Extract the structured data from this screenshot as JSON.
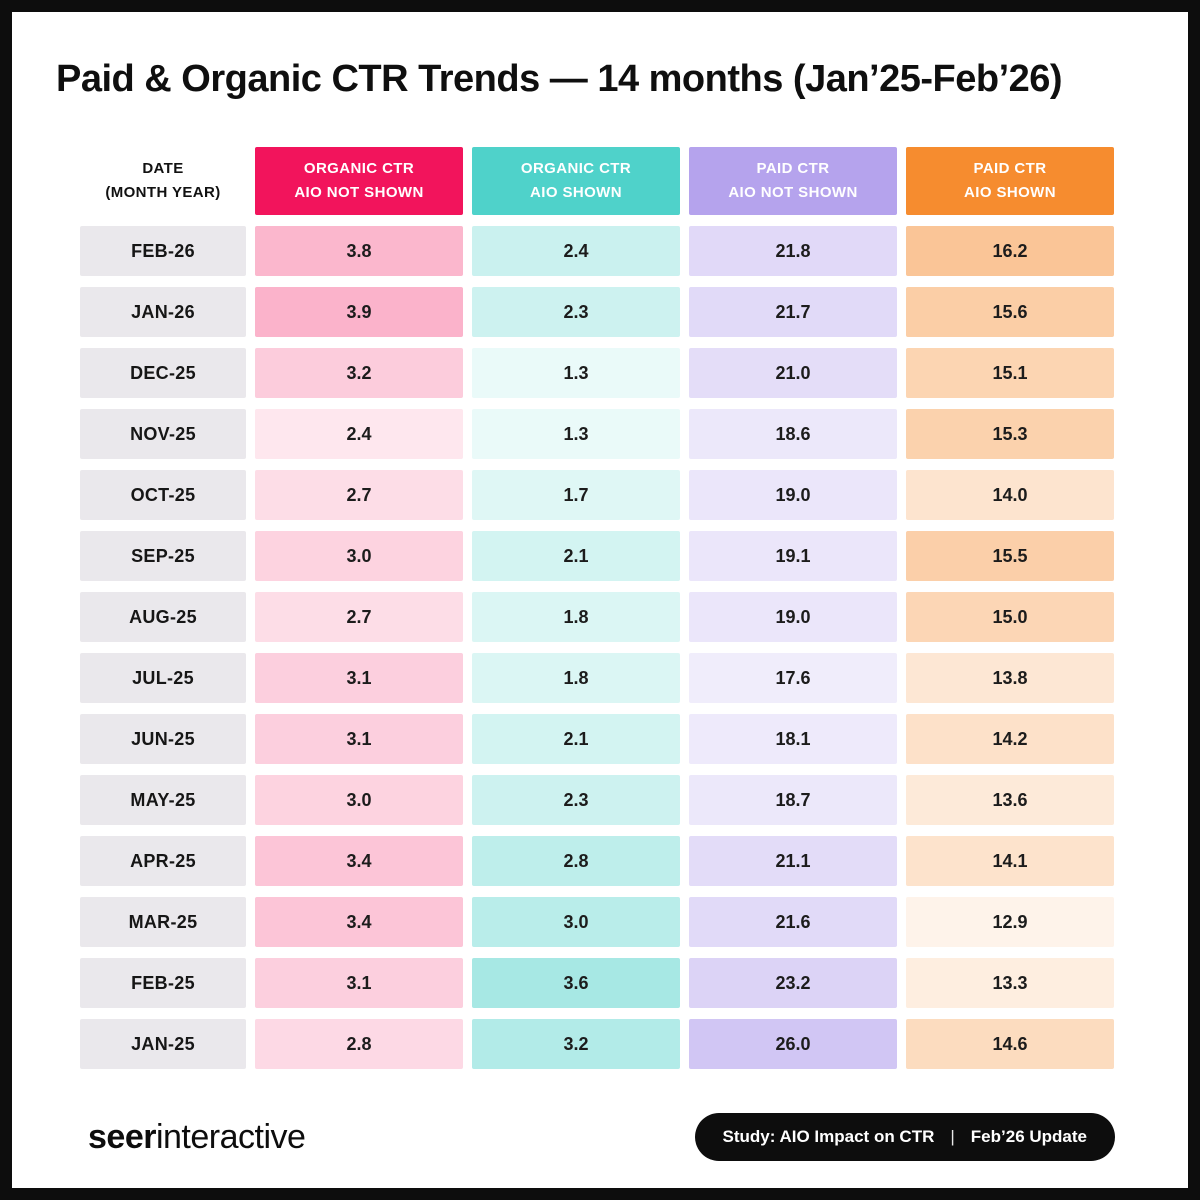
{
  "page": {
    "title": "Paid & Organic CTR Trends — 14 months (Jan’25-Feb’26)"
  },
  "table": {
    "date_header_line1": "DATE",
    "date_header_line2": "(MONTH YEAR)",
    "columns": [
      {
        "label_line1": "ORGANIC CTR",
        "label_line2": "AIO NOT SHOWN",
        "color": "#F2145C"
      },
      {
        "label_line1": "ORGANIC CTR",
        "label_line2": "AIO SHOWN",
        "color": "#4FD2CA"
      },
      {
        "label_line1": "PAID CTR",
        "label_line2": "AIO NOT SHOWN",
        "color": "#B5A3ED"
      },
      {
        "label_line1": "PAID CTR",
        "label_line2": "AIO SHOWN",
        "color": "#F68C2F"
      }
    ],
    "rows": [
      {
        "date": "FEB-26",
        "values": [
          3.8,
          2.4,
          21.8,
          16.2
        ]
      },
      {
        "date": "JAN-26",
        "values": [
          3.9,
          2.3,
          21.7,
          15.6
        ]
      },
      {
        "date": "DEC-25",
        "values": [
          3.2,
          1.3,
          21.0,
          15.1
        ]
      },
      {
        "date": "NOV-25",
        "values": [
          2.4,
          1.3,
          18.6,
          15.3
        ]
      },
      {
        "date": "OCT-25",
        "values": [
          2.7,
          1.7,
          19.0,
          14.0
        ]
      },
      {
        "date": "SEP-25",
        "values": [
          3.0,
          2.1,
          19.1,
          15.5
        ]
      },
      {
        "date": "AUG-25",
        "values": [
          2.7,
          1.8,
          19.0,
          15.0
        ]
      },
      {
        "date": "JUL-25",
        "values": [
          3.1,
          1.8,
          17.6,
          13.8
        ]
      },
      {
        "date": "JUN-25",
        "values": [
          3.1,
          2.1,
          18.1,
          14.2
        ]
      },
      {
        "date": "MAY-25",
        "values": [
          3.0,
          2.3,
          18.7,
          13.6
        ]
      },
      {
        "date": "APR-25",
        "values": [
          3.4,
          2.8,
          21.1,
          14.1
        ]
      },
      {
        "date": "MAR-25",
        "values": [
          3.4,
          3.0,
          21.6,
          12.9
        ]
      },
      {
        "date": "FEB-25",
        "values": [
          3.1,
          3.6,
          23.2,
          13.3
        ]
      },
      {
        "date": "JAN-25",
        "values": [
          2.8,
          3.2,
          26.0,
          14.6
        ]
      }
    ]
  },
  "footer": {
    "logo_bold": "seer",
    "logo_light": "interactive",
    "badge_left": "Study: AIO Impact on CTR",
    "badge_separator": "|",
    "badge_right": "Feb’26 Update"
  },
  "chart_data": {
    "type": "table",
    "title": "Paid & Organic CTR Trends — 14 months (Jan’25-Feb’26)",
    "categories": [
      "FEB-26",
      "JAN-26",
      "DEC-25",
      "NOV-25",
      "OCT-25",
      "SEP-25",
      "AUG-25",
      "JUL-25",
      "JUN-25",
      "MAY-25",
      "APR-25",
      "MAR-25",
      "FEB-25",
      "JAN-25"
    ],
    "series": [
      {
        "name": "ORGANIC CTR AIO NOT SHOWN",
        "values": [
          3.8,
          3.9,
          3.2,
          2.4,
          2.7,
          3.0,
          2.7,
          3.1,
          3.1,
          3.0,
          3.4,
          3.4,
          3.1,
          2.8
        ]
      },
      {
        "name": "ORGANIC CTR AIO SHOWN",
        "values": [
          2.4,
          2.3,
          1.3,
          1.3,
          1.7,
          2.1,
          1.8,
          1.8,
          2.1,
          2.3,
          2.8,
          3.0,
          3.6,
          3.2
        ]
      },
      {
        "name": "PAID CTR AIO NOT SHOWN",
        "values": [
          21.8,
          21.7,
          21.0,
          18.6,
          19.0,
          19.1,
          19.0,
          17.6,
          18.1,
          18.7,
          21.1,
          21.6,
          23.2,
          26.0
        ]
      },
      {
        "name": "PAID CTR AIO SHOWN",
        "values": [
          16.2,
          15.6,
          15.1,
          15.3,
          14.0,
          15.5,
          15.0,
          13.8,
          14.2,
          13.6,
          14.1,
          12.9,
          13.3,
          14.6
        ]
      }
    ],
    "layout_hints": {
      "cell_shading": "per-column heatmap, darker tint = higher value",
      "header_colors": [
        "#F2145C",
        "#4FD2CA",
        "#B5A3ED",
        "#F68C2F"
      ]
    }
  }
}
